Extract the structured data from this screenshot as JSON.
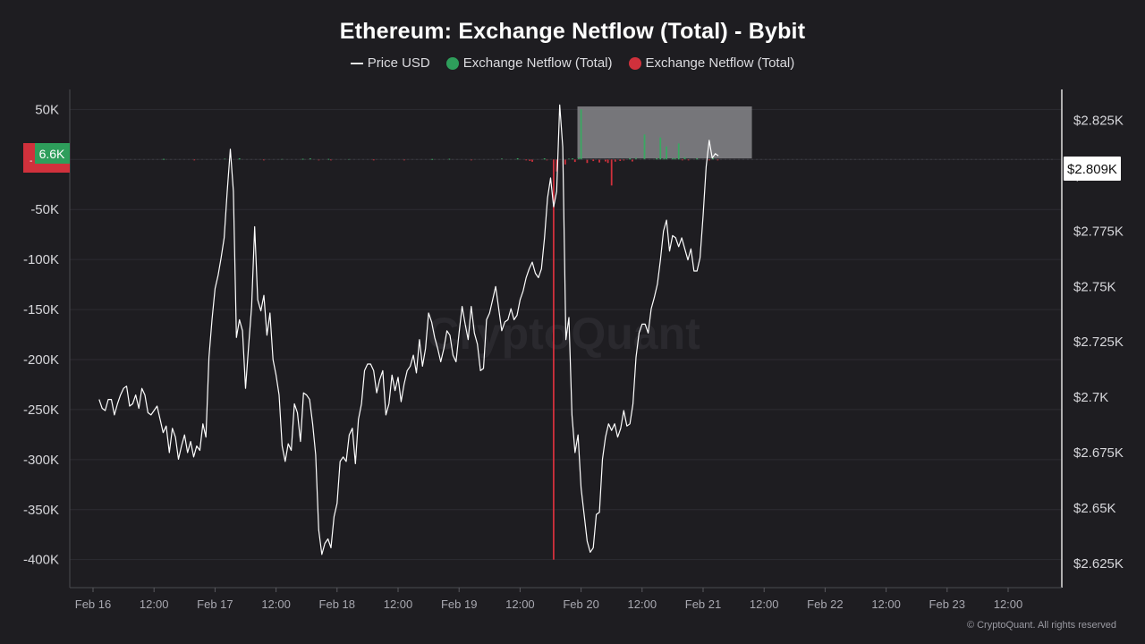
{
  "chart": {
    "title": "Ethereum: Exchange Netflow (Total) - Bybit",
    "legend": [
      {
        "label": "Price USD",
        "marker": "line",
        "color": "#e6e6e6"
      },
      {
        "label": "Exchange Netflow (Total)",
        "marker": "dot",
        "color": "#2e9e5b"
      },
      {
        "label": "Exchange Netflow (Total)",
        "marker": "dot",
        "color": "#d0313c"
      }
    ],
    "watermark": "CryptoQuant",
    "copyright": "© CryptoQuant. All rights reserved",
    "left_badge_positive": "6.6K",
    "left_badge_negative": "-",
    "right_badge": "$2.809K"
  },
  "chart_data": {
    "type": "line",
    "x_tick_labels": [
      "Feb 16",
      "12:00",
      "Feb 17",
      "12:00",
      "Feb 18",
      "12:00",
      "Feb 19",
      "12:00",
      "Feb 20",
      "12:00",
      "Feb 21",
      "12:00",
      "Feb 22",
      "12:00",
      "Feb 23",
      "12:00"
    ],
    "x_range_days": [
      15.95,
      23.85
    ],
    "left_axis": {
      "name": "Exchange Netflow (Total)",
      "ticks": [
        50000,
        0,
        -50000,
        -100000,
        -150000,
        -200000,
        -250000,
        -300000,
        -350000,
        -400000
      ],
      "tick_labels": [
        "50K",
        "",
        "-50K",
        "-100K",
        "-150K",
        "-200K",
        "-250K",
        "-300K",
        "-350K",
        "-400K"
      ],
      "ylim": [
        -428000,
        70000
      ]
    },
    "right_axis": {
      "name": "Price USD",
      "ticks": [
        2825,
        2800,
        2775,
        2750,
        2725,
        2700,
        2675,
        2650,
        2625
      ],
      "tick_labels": [
        "$2.825K",
        "$2.8K",
        "$2.775K",
        "$2.75K",
        "$2.725K",
        "$2.7K",
        "$2.675K",
        "$2.65K",
        "$2.625K"
      ],
      "ylim": [
        2614,
        2839
      ]
    },
    "grid": true,
    "series": [
      {
        "name": "Price USD",
        "axis": "right",
        "color": "#ffffff",
        "points": [
          [
            16.05,
            2699
          ],
          [
            16.075,
            2695
          ],
          [
            16.1,
            2694
          ],
          [
            16.125,
            2699
          ],
          [
            16.15,
            2699
          ],
          [
            16.175,
            2692
          ],
          [
            16.2,
            2697
          ],
          [
            16.225,
            2701
          ],
          [
            16.25,
            2704
          ],
          [
            16.275,
            2705
          ],
          [
            16.3,
            2696
          ],
          [
            16.325,
            2697
          ],
          [
            16.35,
            2701
          ],
          [
            16.375,
            2695
          ],
          [
            16.4,
            2704
          ],
          [
            16.425,
            2701
          ],
          [
            16.45,
            2693
          ],
          [
            16.475,
            2692
          ],
          [
            16.5,
            2694
          ],
          [
            16.525,
            2696
          ],
          [
            16.55,
            2690
          ],
          [
            16.575,
            2684
          ],
          [
            16.6,
            2687
          ],
          [
            16.625,
            2675
          ],
          [
            16.65,
            2686
          ],
          [
            16.675,
            2682
          ],
          [
            16.7,
            2672
          ],
          [
            16.725,
            2678
          ],
          [
            16.75,
            2683
          ],
          [
            16.775,
            2675
          ],
          [
            16.8,
            2680
          ],
          [
            16.825,
            2673
          ],
          [
            16.85,
            2678
          ],
          [
            16.875,
            2676
          ],
          [
            16.9,
            2688
          ],
          [
            16.925,
            2682
          ],
          [
            16.95,
            2718
          ],
          [
            16.975,
            2735
          ],
          [
            17.0,
            2749
          ],
          [
            17.025,
            2755
          ],
          [
            17.05,
            2763
          ],
          [
            17.075,
            2772
          ],
          [
            17.1,
            2793
          ],
          [
            17.125,
            2812
          ],
          [
            17.15,
            2793
          ],
          [
            17.175,
            2727
          ],
          [
            17.2,
            2735
          ],
          [
            17.225,
            2730
          ],
          [
            17.25,
            2704
          ],
          [
            17.275,
            2723
          ],
          [
            17.3,
            2741
          ],
          [
            17.325,
            2777
          ],
          [
            17.35,
            2744
          ],
          [
            17.375,
            2739
          ],
          [
            17.4,
            2746
          ],
          [
            17.425,
            2728
          ],
          [
            17.45,
            2738
          ],
          [
            17.475,
            2717
          ],
          [
            17.5,
            2710
          ],
          [
            17.525,
            2701
          ],
          [
            17.55,
            2678
          ],
          [
            17.575,
            2671
          ],
          [
            17.6,
            2679
          ],
          [
            17.625,
            2676
          ],
          [
            17.65,
            2697
          ],
          [
            17.675,
            2693
          ],
          [
            17.7,
            2680
          ],
          [
            17.725,
            2702
          ],
          [
            17.75,
            2701
          ],
          [
            17.775,
            2699
          ],
          [
            17.8,
            2688
          ],
          [
            17.825,
            2674
          ],
          [
            17.85,
            2640
          ],
          [
            17.875,
            2629
          ],
          [
            17.9,
            2634
          ],
          [
            17.925,
            2636
          ],
          [
            17.95,
            2632
          ],
          [
            17.975,
            2646
          ],
          [
            18.0,
            2652
          ],
          [
            18.025,
            2671
          ],
          [
            18.05,
            2673
          ],
          [
            18.075,
            2671
          ],
          [
            18.1,
            2683
          ],
          [
            18.125,
            2686
          ],
          [
            18.15,
            2670
          ],
          [
            18.175,
            2690
          ],
          [
            18.2,
            2697
          ],
          [
            18.225,
            2712
          ],
          [
            18.25,
            2715
          ],
          [
            18.275,
            2715
          ],
          [
            18.3,
            2712
          ],
          [
            18.325,
            2702
          ],
          [
            18.35,
            2708
          ],
          [
            18.375,
            2712
          ],
          [
            18.4,
            2692
          ],
          [
            18.425,
            2697
          ],
          [
            18.45,
            2710
          ],
          [
            18.475,
            2703
          ],
          [
            18.5,
            2709
          ],
          [
            18.525,
            2698
          ],
          [
            18.55,
            2706
          ],
          [
            18.575,
            2712
          ],
          [
            18.6,
            2714
          ],
          [
            18.625,
            2719
          ],
          [
            18.65,
            2711
          ],
          [
            18.675,
            2726
          ],
          [
            18.7,
            2714
          ],
          [
            18.725,
            2722
          ],
          [
            18.75,
            2738
          ],
          [
            18.775,
            2734
          ],
          [
            18.8,
            2727
          ],
          [
            18.825,
            2722
          ],
          [
            18.85,
            2716
          ],
          [
            18.875,
            2722
          ],
          [
            18.9,
            2730
          ],
          [
            18.925,
            2728
          ],
          [
            18.95,
            2719
          ],
          [
            18.975,
            2716
          ],
          [
            19.0,
            2729
          ],
          [
            19.025,
            2741
          ],
          [
            19.05,
            2733
          ],
          [
            19.075,
            2726
          ],
          [
            19.1,
            2741
          ],
          [
            19.125,
            2729
          ],
          [
            19.15,
            2724
          ],
          [
            19.175,
            2712
          ],
          [
            19.2,
            2713
          ],
          [
            19.225,
            2735
          ],
          [
            19.25,
            2738
          ],
          [
            19.275,
            2744
          ],
          [
            19.3,
            2750
          ],
          [
            19.325,
            2740
          ],
          [
            19.35,
            2730
          ],
          [
            19.375,
            2734
          ],
          [
            19.4,
            2735
          ],
          [
            19.425,
            2740
          ],
          [
            19.45,
            2735
          ],
          [
            19.475,
            2737
          ],
          [
            19.5,
            2744
          ],
          [
            19.525,
            2748
          ],
          [
            19.55,
            2754
          ],
          [
            19.575,
            2758
          ],
          [
            19.6,
            2761
          ],
          [
            19.625,
            2756
          ],
          [
            19.65,
            2754
          ],
          [
            19.675,
            2758
          ],
          [
            19.7,
            2772
          ],
          [
            19.725,
            2790
          ],
          [
            19.75,
            2799
          ],
          [
            19.775,
            2786
          ],
          [
            19.8,
            2793
          ],
          [
            19.825,
            2832
          ],
          [
            19.85,
            2813
          ],
          [
            19.875,
            2726
          ],
          [
            19.9,
            2736
          ],
          [
            19.925,
            2692
          ],
          [
            19.95,
            2675
          ],
          [
            19.975,
            2683
          ],
          [
            20.0,
            2659
          ],
          [
            20.025,
            2647
          ],
          [
            20.05,
            2635
          ],
          [
            20.075,
            2630
          ],
          [
            20.1,
            2632
          ],
          [
            20.125,
            2647
          ],
          [
            20.15,
            2648
          ],
          [
            20.175,
            2672
          ],
          [
            20.2,
            2682
          ],
          [
            20.225,
            2688
          ],
          [
            20.25,
            2685
          ],
          [
            20.275,
            2688
          ],
          [
            20.3,
            2682
          ],
          [
            20.325,
            2686
          ],
          [
            20.35,
            2694
          ],
          [
            20.375,
            2687
          ],
          [
            20.4,
            2688
          ],
          [
            20.425,
            2697
          ],
          [
            20.45,
            2718
          ],
          [
            20.475,
            2729
          ],
          [
            20.5,
            2733
          ],
          [
            20.525,
            2733
          ],
          [
            20.55,
            2729
          ],
          [
            20.575,
            2740
          ],
          [
            20.6,
            2745
          ],
          [
            20.625,
            2751
          ],
          [
            20.65,
            2762
          ],
          [
            20.675,
            2775
          ],
          [
            20.7,
            2780
          ],
          [
            20.725,
            2766
          ],
          [
            20.75,
            2773
          ],
          [
            20.775,
            2772
          ],
          [
            20.8,
            2768
          ],
          [
            20.825,
            2772
          ],
          [
            20.85,
            2767
          ],
          [
            20.875,
            2762
          ],
          [
            20.9,
            2767
          ],
          [
            20.925,
            2757
          ],
          [
            20.95,
            2757
          ],
          [
            20.975,
            2763
          ],
          [
            21.0,
            2782
          ],
          [
            21.025,
            2804
          ],
          [
            21.05,
            2816
          ],
          [
            21.075,
            2808
          ],
          [
            21.1,
            2810
          ],
          [
            21.125,
            2809
          ]
        ]
      },
      {
        "name": "Exchange Netflow (Total)",
        "axis": "left",
        "type": "bar",
        "positive_color": "#3aa862",
        "negative_color": "#d0313c",
        "points": [
          [
            16.58,
            600
          ],
          [
            16.83,
            -500
          ],
          [
            17.08,
            900
          ],
          [
            17.2,
            1200
          ],
          [
            17.4,
            -700
          ],
          [
            17.55,
            500
          ],
          [
            17.72,
            700
          ],
          [
            17.78,
            1200
          ],
          [
            17.85,
            -400
          ],
          [
            17.93,
            600
          ],
          [
            17.95,
            -900
          ],
          [
            18.1,
            400
          ],
          [
            18.3,
            -500
          ],
          [
            18.55,
            -600
          ],
          [
            18.78,
            500
          ],
          [
            18.92,
            700
          ],
          [
            19.1,
            -800
          ],
          [
            19.35,
            1000
          ],
          [
            19.48,
            1200
          ],
          [
            19.55,
            -900
          ],
          [
            19.58,
            -1500
          ],
          [
            19.6,
            -2300
          ],
          [
            19.7,
            1100
          ],
          [
            19.72,
            -600
          ],
          [
            19.775,
            -400000
          ],
          [
            19.8,
            -12000
          ],
          [
            19.87,
            -5000
          ],
          [
            19.9,
            900
          ],
          [
            19.93,
            1100
          ],
          [
            19.95,
            -2500
          ],
          [
            19.98,
            1800
          ],
          [
            20.0,
            50000
          ],
          [
            20.05,
            -3500
          ],
          [
            20.1,
            -1600
          ],
          [
            20.15,
            -3000
          ],
          [
            20.2,
            -2000
          ],
          [
            20.22,
            -3500
          ],
          [
            20.25,
            -26000
          ],
          [
            20.28,
            -2200
          ],
          [
            20.32,
            -1500
          ],
          [
            20.35,
            -1000
          ],
          [
            20.4,
            1200
          ],
          [
            20.42,
            -2000
          ],
          [
            20.45,
            1500
          ],
          [
            20.52,
            25000
          ],
          [
            20.62,
            1200
          ],
          [
            20.65,
            22000
          ],
          [
            20.68,
            1100
          ],
          [
            20.7,
            13000
          ],
          [
            20.75,
            1200
          ],
          [
            20.77,
            1300
          ],
          [
            20.8,
            16000
          ],
          [
            20.83,
            -800
          ],
          [
            20.85,
            2300
          ],
          [
            20.88,
            -600
          ],
          [
            20.95,
            1100
          ],
          [
            21.05,
            -700
          ],
          [
            21.08,
            1500
          ],
          [
            21.12,
            -400
          ]
        ]
      }
    ],
    "annotations": [
      {
        "type": "highlight_rect",
        "x_start": 19.97,
        "x_end": 21.4,
        "y_top": 53000,
        "y_bottom": 1000,
        "axis": "left"
      }
    ]
  }
}
